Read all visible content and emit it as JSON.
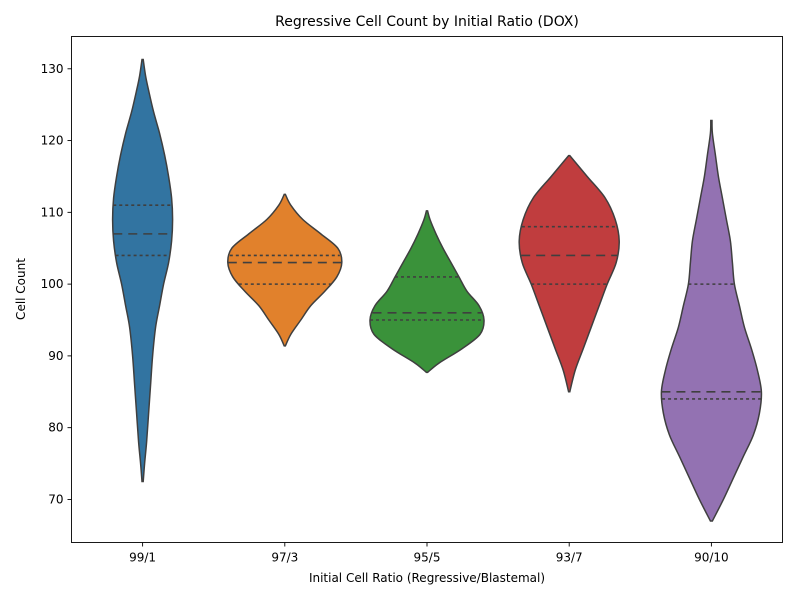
{
  "chart_data": {
    "type": "violin",
    "title": "Regressive Cell Count by Initial Ratio (DOX)",
    "xlabel": "Initial Cell Ratio (Regressive/Blastemal)",
    "ylabel": "Cell Count",
    "ylim": [
      64,
      134.5
    ],
    "yticks": [
      70,
      80,
      90,
      100,
      110,
      120,
      130
    ],
    "grid": false,
    "legend": "none",
    "inner": "quartile",
    "categories": [
      "99/1",
      "97/3",
      "95/5",
      "93/7",
      "90/10"
    ],
    "colors": [
      "#3274a1",
      "#e1812c",
      "#3a923a",
      "#c03d3e",
      "#9372b2"
    ],
    "edge_color": "#3f3f3f",
    "series": [
      {
        "category": "99/1",
        "color": "#3274a1",
        "q1": 104,
        "median": 107,
        "q3": 111,
        "y_min": 72.5,
        "y_max": 131.3,
        "density_y": [
          72.5,
          75,
          78,
          82,
          86,
          90,
          94,
          97,
          100,
          103,
          106,
          109,
          112,
          115,
          118,
          121,
          124,
          127,
          129,
          131.3
        ],
        "density_w": [
          0.6,
          2,
          4,
          6,
          8,
          10,
          13,
          17,
          21,
          26,
          29,
          30,
          29,
          26,
          22,
          17,
          11,
          6,
          3,
          0.6
        ]
      },
      {
        "category": "97/3",
        "color": "#e1812c",
        "q1": 100,
        "median": 103,
        "q3": 104,
        "y_min": 91.4,
        "y_max": 112.5,
        "density_y": [
          91.4,
          93,
          95,
          97,
          99,
          101,
          103,
          105,
          107,
          109,
          111,
          112.5
        ],
        "density_w": [
          0.6,
          6,
          16,
          26,
          40,
          52,
          57,
          53,
          36,
          18,
          6,
          0.6
        ]
      },
      {
        "category": "95/5",
        "color": "#3a923a",
        "q1": 95,
        "median": 96,
        "q3": 101,
        "y_min": 87.7,
        "y_max": 110.2,
        "density_y": [
          87.7,
          89,
          91,
          93,
          95,
          97,
          99,
          101,
          103,
          105,
          107,
          109,
          110.2
        ],
        "density_w": [
          0.6,
          12,
          35,
          53,
          57,
          52,
          40,
          32,
          24,
          16,
          9,
          3,
          0.6
        ]
      },
      {
        "category": "93/7",
        "color": "#c03d3e",
        "q1": 100,
        "median": 104,
        "q3": 108,
        "y_min": 85,
        "y_max": 117.9,
        "density_y": [
          85,
          88,
          91,
          94,
          97,
          100,
          103,
          106,
          109,
          112,
          115,
          117.9
        ],
        "density_w": [
          0.6,
          6,
          14,
          22,
          30,
          38,
          47,
          50,
          46,
          36,
          18,
          0.6
        ]
      },
      {
        "category": "90/10",
        "color": "#9372b2",
        "q1": 84,
        "median": 85,
        "q3": 100,
        "y_min": 67,
        "y_max": 122.8,
        "density_y": [
          67,
          70,
          73,
          76,
          79,
          82,
          85,
          88,
          91,
          94,
          97,
          100,
          103,
          106,
          109,
          112,
          115,
          118,
          121,
          122.8
        ],
        "density_w": [
          1,
          12,
          22,
          32,
          42,
          48,
          50,
          46,
          40,
          33,
          28,
          23,
          21,
          19,
          15,
          11,
          7,
          4,
          1,
          0.6
        ]
      }
    ]
  }
}
